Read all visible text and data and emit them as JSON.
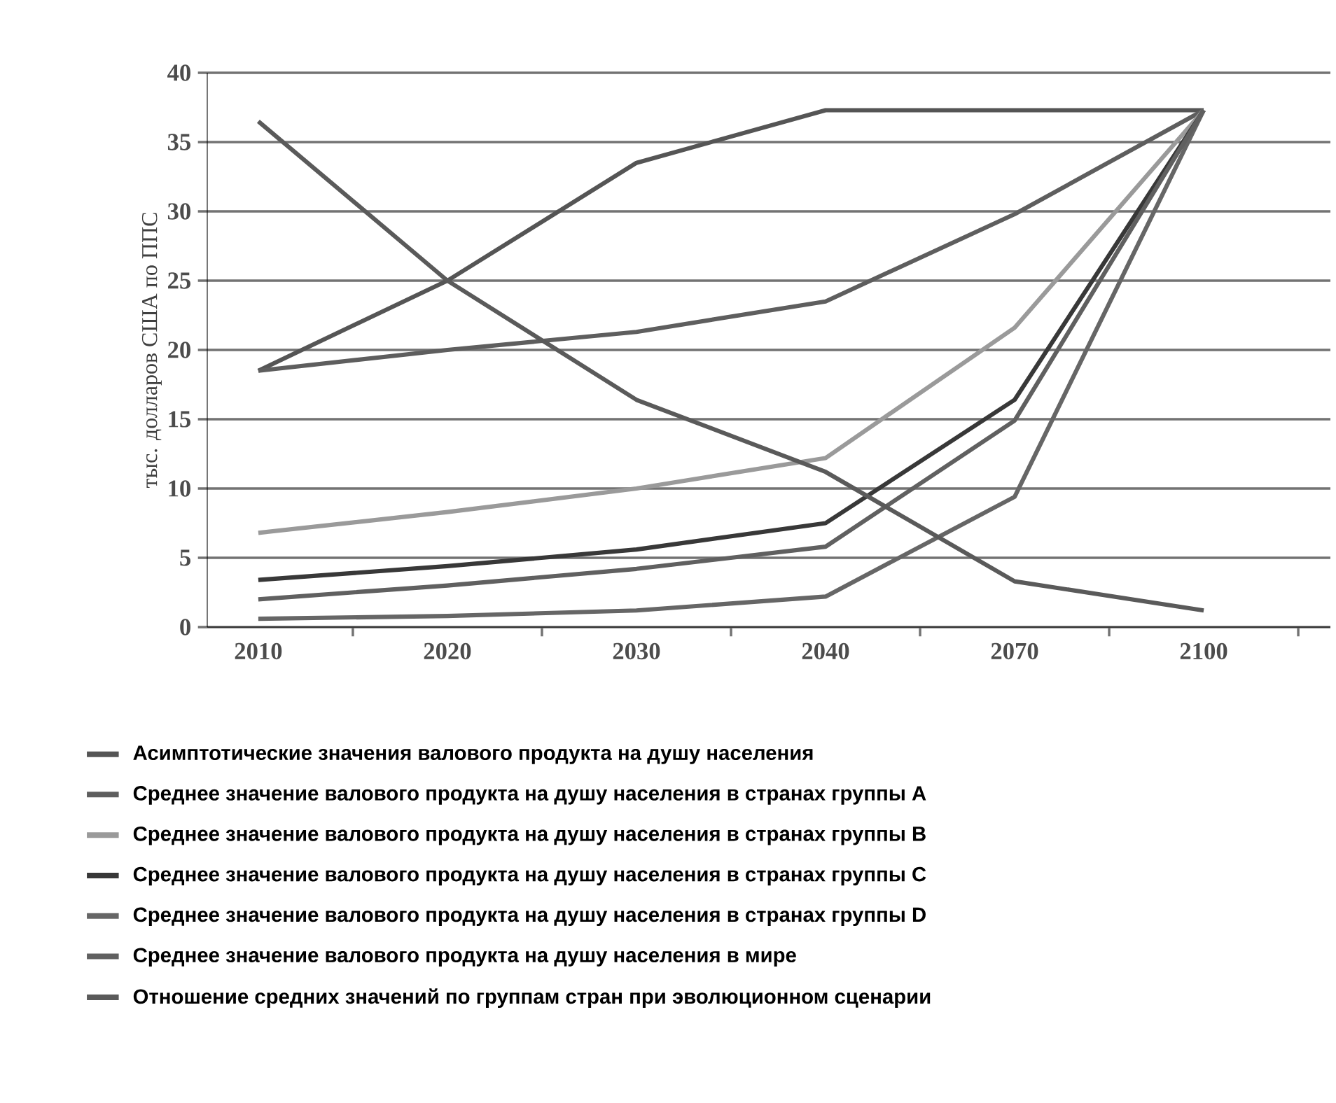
{
  "chart_data": {
    "type": "line",
    "ylabel": "тыс. долларов США по ППС",
    "categories": [
      "2010",
      "2020",
      "2030",
      "2040",
      "2070",
      "2100"
    ],
    "ylim": [
      0,
      40
    ],
    "yticks": [
      0,
      5,
      10,
      15,
      20,
      25,
      30,
      35,
      40
    ],
    "grid": "y",
    "legend": "bottom",
    "marker": "none",
    "line_style": "solid",
    "series": [
      {
        "name": "Асимптотические значения валового продукта на душу населения",
        "color": "#555555",
        "values": [
          18.5,
          25,
          33.5,
          37.3,
          37.3,
          37.3
        ]
      },
      {
        "name": "Среднее значение валового продукта на душу населения в странах группы A",
        "color": "#5e5e5e",
        "values": [
          18.5,
          20,
          21.3,
          23.5,
          29.8,
          37.3
        ]
      },
      {
        "name": "Среднее значение валового продукта на душу населения в странах группы B",
        "color": "#9a9a9a",
        "values": [
          6.8,
          8.3,
          10,
          12.2,
          21.6,
          37.3
        ]
      },
      {
        "name": "Среднее значение валового продукта на душу населения в странах группы C",
        "color": "#383838",
        "values": [
          3.4,
          4.4,
          5.6,
          7.5,
          16.4,
          37.3
        ]
      },
      {
        "name": "Среднее значение валового продукта на душу населения в странах группы D",
        "color": "#666666",
        "values": [
          0.6,
          0.8,
          1.2,
          2.2,
          9.4,
          37.3
        ]
      },
      {
        "name": "Среднее значение валового продукта на душу населения в мире",
        "color": "#606060",
        "values": [
          2.0,
          3.0,
          4.2,
          5.8,
          14.9,
          37.3
        ]
      },
      {
        "name": "Отношение средних значений по группам стран при эволюционном сценарии",
        "color": "#5a5a5a",
        "values": [
          36.5,
          25,
          16.4,
          11.2,
          3.3,
          1.2
        ]
      }
    ]
  }
}
